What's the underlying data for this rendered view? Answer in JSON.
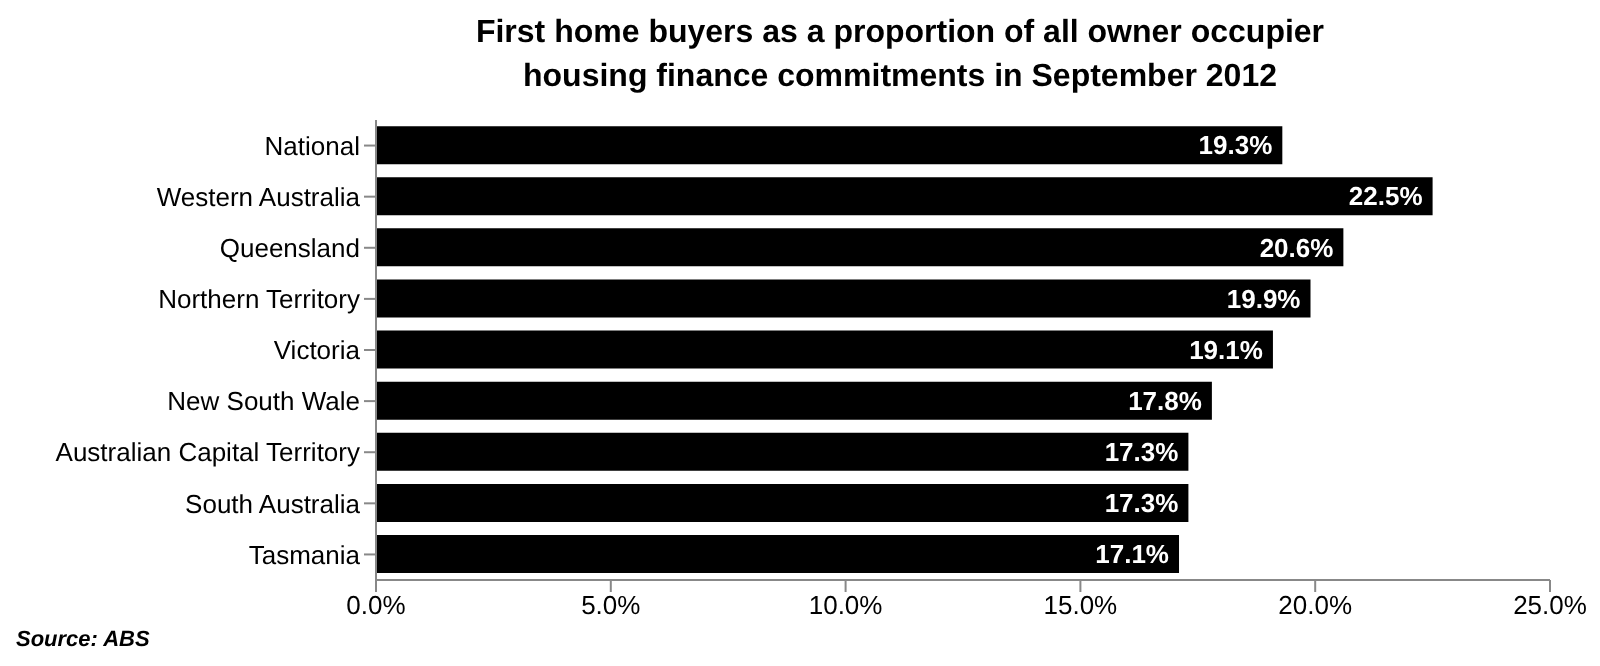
{
  "chart_data": {
    "type": "bar",
    "orientation": "horizontal",
    "title": "First home buyers as a proportion of all owner occupier housing finance commitments in September 2012",
    "categories": [
      "National",
      "Western Australia",
      "Queensland",
      "Northern Territory",
      "Victoria",
      "New South Wale",
      "Australian Capital Territory",
      "South Australia",
      "Tasmania"
    ],
    "values": [
      19.3,
      22.5,
      20.6,
      19.9,
      19.1,
      17.8,
      17.3,
      17.3,
      17.1
    ],
    "value_labels": [
      "19.3%",
      "22.5%",
      "20.6%",
      "19.9%",
      "19.1%",
      "17.8%",
      "17.3%",
      "17.3%",
      "17.1%"
    ],
    "color": "#000000",
    "xlim": [
      0,
      25
    ],
    "xticks": [
      {
        "value": 0,
        "label": "0.0%"
      },
      {
        "value": 5,
        "label": "5.0%"
      },
      {
        "value": 10,
        "label": "10.0%"
      },
      {
        "value": 15,
        "label": "15.0%"
      },
      {
        "value": 20,
        "label": "20.0%"
      },
      {
        "value": 25,
        "label": "25.0%"
      }
    ],
    "annotations": [
      "Source: ABS"
    ]
  }
}
